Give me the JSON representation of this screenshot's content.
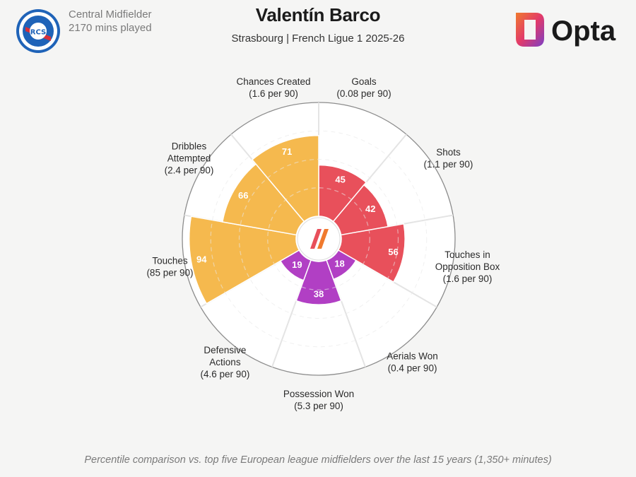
{
  "header": {
    "position": "Central Midfielder",
    "minutes": "2170 mins played",
    "player_name": "Valentín Barco",
    "subtitle": "Strasbourg | French Ligue 1 2025-26",
    "brand_name": "Opta",
    "badge_text": "RCS"
  },
  "footnote": "Percentile comparison vs. top five European league midfielders over the last 15 years (1,350+ minutes)",
  "colors": {
    "attacking": "#e8505b",
    "possession": "#f5b94e",
    "defending": "#b13fc4",
    "ring": "#8c8c8c",
    "spoke": "#e4e4e4",
    "background": "#f5f5f4"
  },
  "chart_data": {
    "type": "radar",
    "scale_max": 100,
    "metrics": [
      {
        "label": [
          "Goals",
          "(0.08 per 90)"
        ],
        "percentile": 45,
        "group": "attacking"
      },
      {
        "label": [
          "Shots",
          "(1.1 per 90)"
        ],
        "percentile": 42,
        "group": "attacking"
      },
      {
        "label": [
          "Touches in",
          "Opposition Box",
          "(1.6 per 90)"
        ],
        "percentile": 56,
        "group": "attacking"
      },
      {
        "label": [
          "Aerials Won",
          "(0.4 per 90)"
        ],
        "percentile": 18,
        "group": "defending"
      },
      {
        "label": [
          "Possession Won",
          "(5.3 per 90)"
        ],
        "percentile": 38,
        "group": "defending"
      },
      {
        "label": [
          "Defensive",
          "Actions",
          "(4.6 per 90)"
        ],
        "percentile": 19,
        "group": "defending"
      },
      {
        "label": [
          "Touches",
          "(85 per 90)"
        ],
        "percentile": 94,
        "group": "possession"
      },
      {
        "label": [
          "Dribbles",
          "Attempted",
          "(2.4 per 90)"
        ],
        "percentile": 66,
        "group": "possession"
      },
      {
        "label": [
          "Chances Created",
          "(1.6 per 90)"
        ],
        "percentile": 71,
        "group": "possession"
      }
    ]
  }
}
